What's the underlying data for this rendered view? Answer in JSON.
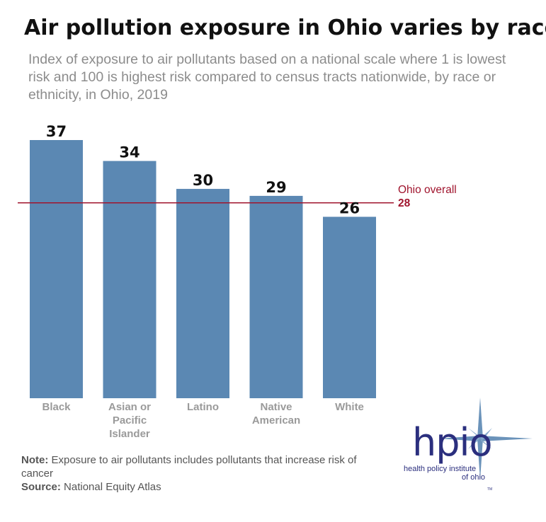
{
  "title": "Air pollution exposure in Ohio varies by race",
  "subtitle": "Index of exposure to air pollutants based on a national scale where 1 is lowest risk and 100 is highest risk compared to census tracts nationwide, by race or ethnicity, in Ohio, 2019",
  "chart_data": {
    "type": "bar",
    "categories": [
      [
        "Black"
      ],
      [
        "Asian or",
        "Pacific",
        "Islander"
      ],
      [
        "Latino"
      ],
      [
        "Native",
        "American"
      ],
      [
        "White"
      ]
    ],
    "values": [
      37,
      34,
      30,
      29,
      26
    ],
    "data_labels": [
      "37",
      "34",
      "30",
      "29",
      "26"
    ],
    "bar_color": "#5b88b3",
    "ylim": [
      0,
      37
    ],
    "reference_line": {
      "label": "Ohio overall",
      "value": 28,
      "value_label": "28",
      "color": "#a0142d"
    },
    "grid": false,
    "legend": "none"
  },
  "notes": {
    "note_label": "Note:",
    "note_text": " Exposure to air pollutants includes pollutants that increase risk of cancer",
    "source_label": "Source:",
    "source_text": " National Equity Atlas"
  },
  "logo": {
    "wordmark": "hpio",
    "tagline_line1": "health policy institute",
    "tagline_line2": "of ohio",
    "tm": "TM",
    "colors": {
      "text": "#2b2f7e",
      "star": "#5b88b3"
    }
  }
}
